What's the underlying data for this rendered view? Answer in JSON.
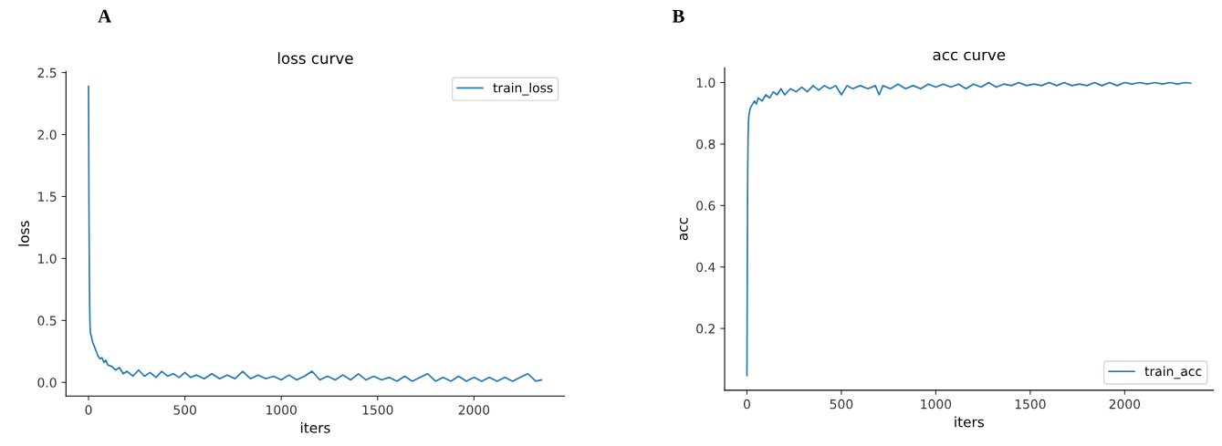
{
  "chart_data": [
    {
      "type": "line",
      "title": "loss curve",
      "xlabel": "iters",
      "ylabel": "loss",
      "annotations": [
        "A"
      ],
      "x": [
        0,
        2,
        4,
        6,
        8,
        10,
        15,
        20,
        30,
        40,
        50,
        60,
        70,
        80,
        90,
        100,
        120,
        140,
        160,
        180,
        200,
        230,
        260,
        290,
        320,
        350,
        380,
        410,
        440,
        470,
        500,
        530,
        560,
        600,
        640,
        680,
        720,
        760,
        800,
        840,
        880,
        920,
        960,
        1000,
        1040,
        1080,
        1120,
        1160,
        1200,
        1240,
        1280,
        1320,
        1360,
        1400,
        1440,
        1480,
        1520,
        1560,
        1600,
        1640,
        1680,
        1720,
        1760,
        1800,
        1840,
        1880,
        1920,
        1960,
        2000,
        2040,
        2080,
        2120,
        2160,
        2200,
        2240,
        2280,
        2320,
        2350
      ],
      "series": [
        {
          "name": "train_loss",
          "color": "#1f77b4",
          "values": [
            2.39,
            1.5,
            0.9,
            0.6,
            0.45,
            0.4,
            0.37,
            0.33,
            0.29,
            0.25,
            0.21,
            0.19,
            0.2,
            0.16,
            0.18,
            0.14,
            0.13,
            0.1,
            0.12,
            0.07,
            0.09,
            0.05,
            0.1,
            0.05,
            0.08,
            0.04,
            0.09,
            0.05,
            0.07,
            0.04,
            0.08,
            0.04,
            0.06,
            0.03,
            0.07,
            0.03,
            0.06,
            0.03,
            0.09,
            0.03,
            0.06,
            0.03,
            0.05,
            0.02,
            0.06,
            0.02,
            0.05,
            0.09,
            0.02,
            0.05,
            0.02,
            0.06,
            0.02,
            0.07,
            0.02,
            0.05,
            0.02,
            0.04,
            0.01,
            0.05,
            0.01,
            0.04,
            0.07,
            0.01,
            0.04,
            0.01,
            0.05,
            0.01,
            0.04,
            0.01,
            0.04,
            0.01,
            0.04,
            0.01,
            0.04,
            0.07,
            0.01,
            0.02
          ]
        }
      ],
      "xlim": [
        -117,
        2470
      ],
      "xticks": [
        0,
        500,
        1000,
        1500,
        2000
      ],
      "ylim": [
        -0.11,
        2.51
      ],
      "yticks": [
        {
          "value": 0,
          "label": "0.0"
        },
        0.5,
        {
          "value": 1,
          "label": "1.0"
        },
        1.5,
        {
          "value": 2,
          "label": "2.0"
        },
        2.5
      ],
      "legend": "top right",
      "grid": false,
      "marker": "none",
      "line_style": "solid"
    },
    {
      "type": "line",
      "title": "acc curve",
      "xlabel": "iters",
      "ylabel": "acc",
      "annotations": [
        "B"
      ],
      "x": [
        0,
        2,
        4,
        6,
        8,
        10,
        15,
        20,
        30,
        40,
        50,
        60,
        80,
        100,
        120,
        140,
        160,
        180,
        200,
        230,
        260,
        290,
        320,
        350,
        380,
        410,
        440,
        470,
        500,
        530,
        560,
        600,
        640,
        680,
        700,
        720,
        760,
        800,
        840,
        880,
        920,
        960,
        1000,
        1040,
        1080,
        1120,
        1160,
        1200,
        1240,
        1280,
        1320,
        1360,
        1400,
        1440,
        1480,
        1520,
        1560,
        1600,
        1640,
        1680,
        1720,
        1760,
        1800,
        1840,
        1880,
        1920,
        1960,
        2000,
        2040,
        2080,
        2120,
        2160,
        2200,
        2240,
        2280,
        2320,
        2350
      ],
      "series": [
        {
          "name": "train_acc",
          "color": "#1f77b4",
          "values": [
            0.047,
            0.4,
            0.7,
            0.82,
            0.87,
            0.89,
            0.91,
            0.92,
            0.93,
            0.94,
            0.93,
            0.95,
            0.94,
            0.96,
            0.95,
            0.97,
            0.96,
            0.98,
            0.96,
            0.98,
            0.97,
            0.985,
            0.97,
            0.99,
            0.975,
            0.99,
            0.98,
            0.99,
            0.96,
            0.99,
            0.98,
            0.99,
            0.98,
            0.99,
            0.96,
            0.99,
            0.98,
            0.995,
            0.98,
            0.99,
            0.98,
            0.995,
            0.985,
            0.995,
            0.985,
            0.995,
            0.98,
            0.995,
            0.985,
            1.0,
            0.985,
            0.995,
            0.99,
            1.0,
            0.99,
            0.995,
            0.99,
            1.0,
            0.99,
            1.0,
            0.99,
            0.995,
            0.99,
            1.0,
            0.99,
            1.0,
            0.99,
            1.0,
            0.995,
            1.0,
            0.995,
            1.0,
            0.995,
            1.0,
            0.995,
            1.0,
            0.998
          ]
        }
      ],
      "xlim": [
        -118,
        2470
      ],
      "xticks": [
        0,
        500,
        1000,
        1500,
        2000
      ],
      "ylim": [
        -0.001,
        1.048
      ],
      "yticks": [
        0.2,
        0.4,
        0.6,
        0.8,
        {
          "value": 1,
          "label": "1.0"
        }
      ],
      "legend": "bottom right",
      "grid": false,
      "marker": "none",
      "line_style": "solid"
    }
  ]
}
